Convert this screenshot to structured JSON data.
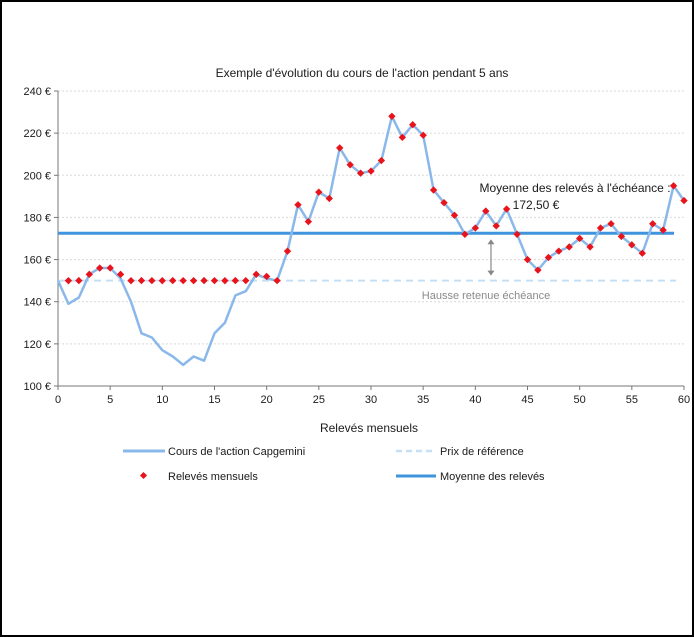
{
  "chart_data": {
    "type": "line",
    "title": "Exemple d'évolution du cours de l'action pendant 5 ans",
    "xlabel": "Relevés mensuels",
    "ylabel": "",
    "xlim": [
      0,
      60
    ],
    "ylim": [
      100,
      240
    ],
    "x_ticks": [
      0,
      5,
      10,
      15,
      20,
      25,
      30,
      35,
      40,
      45,
      50,
      55,
      60
    ],
    "y_ticks": [
      100,
      120,
      140,
      160,
      180,
      200,
      220,
      240
    ],
    "y_tick_labels": [
      "100 €",
      "120 €",
      "140 €",
      "160 €",
      "180 €",
      "200 €",
      "220 €",
      "240 €"
    ],
    "grid": "horizontal",
    "legend_position": "bottom",
    "series": [
      {
        "name": "Cours de l'action Capgemini",
        "kind": "line",
        "color": "#8ab8ea",
        "x": [
          0,
          1,
          2,
          3,
          4,
          5,
          6,
          7,
          8,
          9,
          10,
          11,
          12,
          13,
          14,
          15,
          16,
          17,
          18,
          19,
          20,
          21,
          22,
          23,
          24,
          25,
          26,
          27,
          28,
          29,
          30,
          31,
          32,
          33,
          34,
          35,
          36,
          37,
          38,
          39,
          40,
          41,
          42,
          43,
          44,
          45,
          46,
          47,
          48,
          49,
          50,
          51,
          52,
          53,
          54,
          55,
          56,
          57,
          58,
          59,
          60
        ],
        "values": [
          150,
          139,
          142,
          153,
          156,
          156,
          151,
          140,
          125,
          123,
          117,
          114,
          110,
          114,
          112,
          125,
          130,
          143,
          145,
          153,
          151,
          150,
          164,
          186,
          178,
          192,
          189,
          213,
          205,
          201,
          202,
          207,
          228,
          218,
          224,
          219,
          193,
          187,
          181,
          172,
          175,
          183,
          176,
          184,
          172,
          160,
          155,
          161,
          164,
          166,
          170,
          166,
          175,
          177,
          171,
          167,
          163,
          177,
          174,
          195,
          188
        ]
      },
      {
        "name": "Relevés mensuels",
        "kind": "scatter",
        "color": "#e8141c",
        "x": [
          1,
          2,
          3,
          4,
          5,
          6,
          7,
          8,
          9,
          10,
          11,
          12,
          13,
          14,
          15,
          16,
          17,
          18,
          19,
          20,
          21,
          22,
          23,
          24,
          25,
          26,
          27,
          28,
          29,
          30,
          31,
          32,
          33,
          34,
          35,
          36,
          37,
          38,
          39,
          40,
          41,
          42,
          43,
          44,
          45,
          46,
          47,
          48,
          49,
          50,
          51,
          52,
          53,
          54,
          55,
          56,
          57,
          58,
          59,
          60
        ],
        "values": [
          150,
          150,
          153,
          156,
          156,
          153,
          150,
          150,
          150,
          150,
          150,
          150,
          150,
          150,
          150,
          150,
          150,
          150,
          153,
          152,
          150,
          164,
          186,
          178,
          192,
          189,
          213,
          205,
          201,
          202,
          207,
          228,
          218,
          224,
          219,
          193,
          187,
          181,
          172,
          175,
          183,
          176,
          184,
          172,
          160,
          155,
          161,
          164,
          166,
          170,
          166,
          175,
          177,
          171,
          167,
          163,
          177,
          174,
          195,
          188
        ]
      },
      {
        "name": "Prix de référence",
        "kind": "hline-dashed",
        "color": "#c5dff5",
        "value": 150
      },
      {
        "name": "Moyenne des relevés",
        "kind": "hline",
        "color": "#3f94dd",
        "value": 172.5
      }
    ],
    "annotations": {
      "average_label": "Moyenne des relevés à l'échéance :",
      "average_value": "172,50 €",
      "hausse_label": "Hausse retenue échéance"
    }
  }
}
